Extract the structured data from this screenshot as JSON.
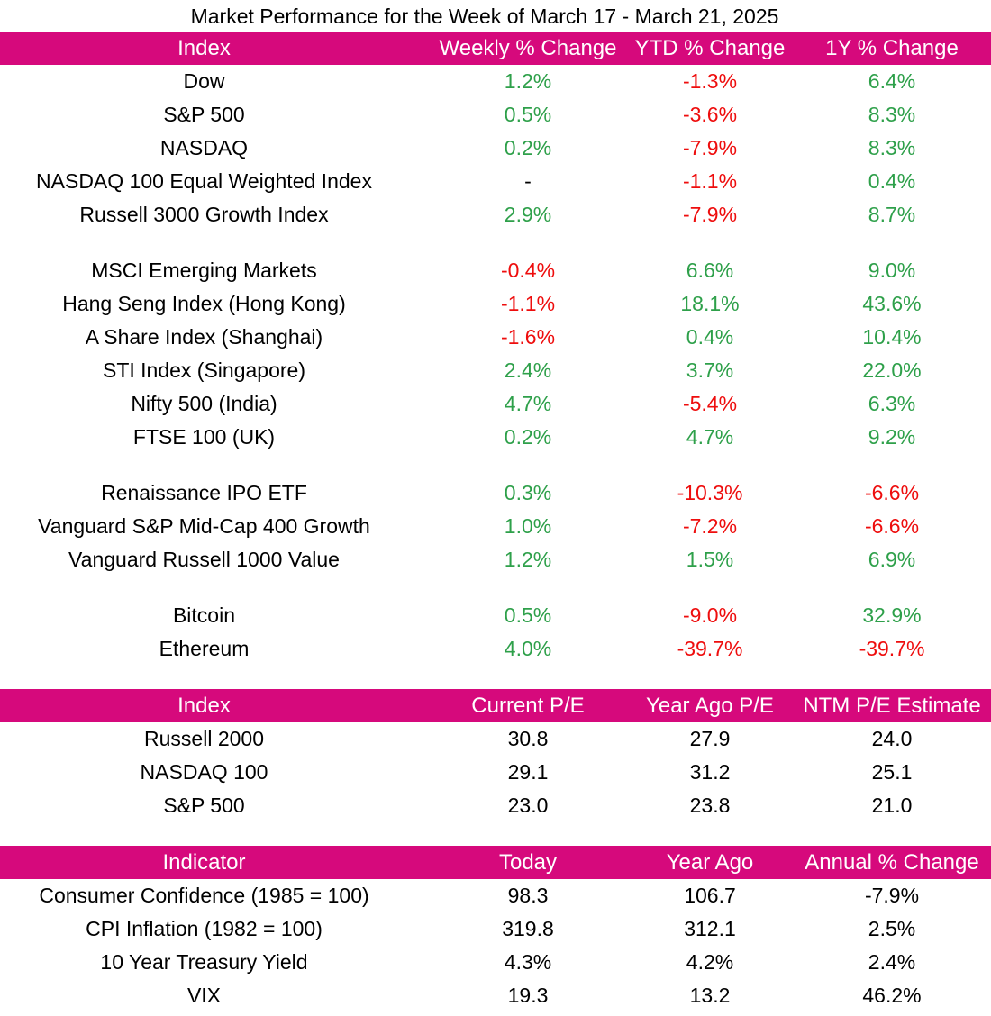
{
  "title": "Market Performance for the Week of March 17 - March 21, 2025",
  "colors": {
    "header_bg": "#d6097c",
    "header_text": "#ffffff",
    "positive": "#2ea04a",
    "negative": "#ee0d0d"
  },
  "performance": {
    "headers": [
      "Index",
      "Weekly % Change",
      "YTD % Change",
      "1Y % Change"
    ],
    "groups": [
      [
        [
          "Dow",
          "1.2%",
          "-1.3%",
          "6.4%"
        ],
        [
          "S&P 500",
          "0.5%",
          "-3.6%",
          "8.3%"
        ],
        [
          "NASDAQ",
          "0.2%",
          "-7.9%",
          "8.3%"
        ],
        [
          "NASDAQ 100 Equal Weighted Index",
          "-",
          "-1.1%",
          "0.4%"
        ],
        [
          "Russell 3000 Growth Index",
          "2.9%",
          "-7.9%",
          "8.7%"
        ]
      ],
      [
        [
          "MSCI Emerging Markets",
          "-0.4%",
          "6.6%",
          "9.0%"
        ],
        [
          "Hang Seng Index (Hong Kong)",
          "-1.1%",
          "18.1%",
          "43.6%"
        ],
        [
          "A Share Index (Shanghai)",
          "-1.6%",
          "0.4%",
          "10.4%"
        ],
        [
          "STI Index (Singapore)",
          "2.4%",
          "3.7%",
          "22.0%"
        ],
        [
          "Nifty 500 (India)",
          "4.7%",
          "-5.4%",
          "6.3%"
        ],
        [
          "FTSE 100 (UK)",
          "0.2%",
          "4.7%",
          "9.2%"
        ]
      ],
      [
        [
          "Renaissance IPO ETF",
          "0.3%",
          "-10.3%",
          "-6.6%"
        ],
        [
          "Vanguard S&P Mid-Cap 400 Growth",
          "1.0%",
          "-7.2%",
          "-6.6%"
        ],
        [
          "Vanguard Russell 1000 Value",
          "1.2%",
          "1.5%",
          "6.9%"
        ]
      ],
      [
        [
          "Bitcoin",
          "0.5%",
          "-9.0%",
          "32.9%"
        ],
        [
          "Ethereum",
          "4.0%",
          "-39.7%",
          "-39.7%"
        ]
      ]
    ]
  },
  "valuation": {
    "headers": [
      "Index",
      "Current P/E",
      "Year Ago P/E",
      "NTM P/E Estimate"
    ],
    "rows": [
      [
        "Russell 2000",
        "30.8",
        "27.9",
        "24.0"
      ],
      [
        "NASDAQ 100",
        "29.1",
        "31.2",
        "25.1"
      ],
      [
        "S&P 500",
        "23.0",
        "23.8",
        "21.0"
      ]
    ]
  },
  "indicators": {
    "headers": [
      "Indicator",
      "Today",
      "Year Ago",
      "Annual % Change"
    ],
    "rows": [
      [
        "Consumer Confidence (1985 = 100)",
        "98.3",
        "106.7",
        "-7.9%"
      ],
      [
        "CPI Inflation (1982 = 100)",
        "319.8",
        "312.1",
        "2.5%"
      ],
      [
        "10 Year Treasury Yield",
        "4.3%",
        "4.2%",
        "2.4%"
      ],
      [
        "VIX",
        "19.3",
        "13.2",
        "46.2%"
      ]
    ]
  }
}
